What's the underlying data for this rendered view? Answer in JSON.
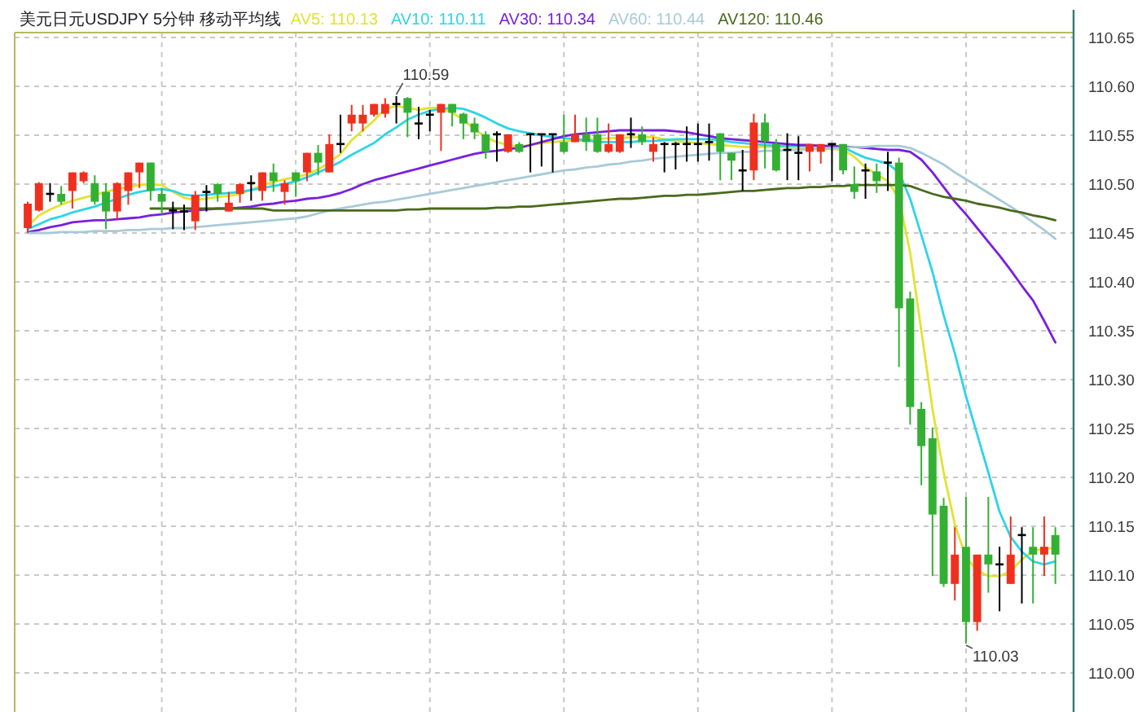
{
  "chart_data": {
    "type": "candlestick",
    "title": "美元日元USDJPY 5分钟 移动平均线",
    "categories": [
      null,
      null,
      null,
      null,
      null,
      null,
      null,
      null,
      null,
      null,
      null,
      null,
      null,
      null,
      null,
      null,
      null,
      null,
      null,
      null,
      null,
      null,
      null,
      null,
      null,
      null,
      null,
      null,
      null,
      null,
      null,
      null,
      null,
      null,
      null,
      null,
      null,
      null,
      null,
      null,
      null,
      null,
      null,
      null,
      null,
      null,
      null,
      null,
      null,
      null,
      null,
      null,
      null,
      null,
      null,
      null,
      null,
      null,
      null,
      null,
      null,
      null,
      null,
      null,
      null,
      null,
      null,
      null,
      null,
      null,
      null,
      null,
      null,
      null,
      null,
      null,
      null,
      null,
      null,
      null,
      null,
      null,
      null,
      null,
      null,
      null,
      null,
      null,
      null,
      null,
      null,
      null,
      null
    ],
    "ohlc": [
      [
        110.455,
        110.482,
        110.45,
        110.48
      ],
      [
        110.473,
        110.502,
        110.472,
        110.501
      ],
      [
        110.49,
        110.501,
        110.482,
        110.49
      ],
      [
        110.49,
        110.498,
        110.479,
        110.482
      ],
      [
        110.493,
        110.512,
        110.475,
        110.512
      ],
      [
        110.503,
        110.513,
        110.501,
        110.512
      ],
      [
        110.501,
        110.509,
        110.479,
        110.482
      ],
      [
        110.492,
        110.501,
        110.454,
        110.472
      ],
      [
        110.472,
        110.502,
        110.464,
        110.501
      ],
      [
        110.493,
        110.512,
        110.479,
        110.512
      ],
      [
        110.512,
        110.522,
        110.496,
        110.522
      ],
      [
        110.522,
        110.522,
        110.483,
        110.493
      ],
      [
        110.49,
        110.496,
        110.469,
        110.482
      ],
      [
        110.473,
        110.482,
        110.454,
        110.473
      ],
      [
        110.472,
        110.479,
        110.453,
        110.472
      ],
      [
        110.462,
        110.493,
        110.453,
        110.489
      ],
      [
        110.492,
        110.499,
        110.472,
        110.492
      ],
      [
        110.5,
        110.501,
        110.482,
        110.49
      ],
      [
        110.472,
        110.492,
        110.472,
        110.481
      ],
      [
        110.49,
        110.501,
        110.481,
        110.5
      ],
      [
        110.501,
        110.509,
        110.483,
        110.501
      ],
      [
        110.493,
        110.512,
        110.483,
        110.512
      ],
      [
        110.512,
        110.521,
        110.492,
        110.503
      ],
      [
        110.492,
        110.504,
        110.479,
        110.501
      ],
      [
        110.512,
        110.512,
        110.487,
        110.503
      ],
      [
        110.512,
        110.532,
        110.503,
        110.532
      ],
      [
        110.532,
        110.54,
        110.509,
        110.522
      ],
      [
        110.512,
        110.551,
        110.512,
        110.541
      ],
      [
        110.541,
        110.571,
        110.532,
        110.541
      ],
      [
        110.562,
        110.581,
        110.554,
        110.571
      ],
      [
        110.562,
        110.581,
        110.554,
        110.571
      ],
      [
        110.571,
        110.582,
        110.569,
        110.582
      ],
      [
        110.572,
        110.588,
        110.568,
        110.582
      ],
      [
        110.582,
        110.59,
        110.562,
        110.582
      ],
      [
        110.588,
        110.589,
        110.548,
        110.573
      ],
      [
        110.562,
        110.579,
        110.546,
        110.562
      ],
      [
        110.571,
        110.576,
        110.554,
        110.571
      ],
      [
        110.573,
        110.582,
        110.534,
        110.582
      ],
      [
        110.582,
        110.582,
        110.559,
        110.573
      ],
      [
        110.572,
        110.573,
        110.546,
        110.562
      ],
      [
        110.562,
        110.568,
        110.546,
        110.553
      ],
      [
        110.551,
        110.554,
        110.526,
        110.533
      ],
      [
        110.551,
        110.554,
        110.523,
        110.551
      ],
      [
        110.533,
        110.551,
        110.532,
        110.551
      ],
      [
        110.541,
        110.543,
        110.532,
        110.533
      ],
      [
        110.551,
        110.551,
        110.512,
        110.551
      ],
      [
        110.551,
        110.551,
        110.518,
        110.551
      ],
      [
        110.551,
        110.551,
        110.512,
        110.551
      ],
      [
        110.543,
        110.571,
        110.532,
        110.533
      ],
      [
        110.543,
        110.571,
        110.543,
        110.551
      ],
      [
        110.551,
        110.568,
        110.534,
        110.543
      ],
      [
        110.551,
        110.568,
        110.532,
        110.533
      ],
      [
        110.533,
        110.562,
        110.532,
        110.541
      ],
      [
        110.533,
        110.551,
        110.532,
        110.551
      ],
      [
        110.551,
        110.568,
        110.537,
        110.551
      ],
      [
        110.551,
        110.559,
        110.54,
        110.543
      ],
      [
        110.533,
        110.548,
        110.523,
        110.541
      ],
      [
        110.541,
        110.543,
        110.512,
        110.541
      ],
      [
        110.541,
        110.543,
        110.515,
        110.541
      ],
      [
        110.541,
        110.559,
        110.523,
        110.541
      ],
      [
        110.541,
        110.562,
        110.523,
        110.541
      ],
      [
        110.543,
        110.562,
        110.524,
        110.543
      ],
      [
        110.552,
        110.552,
        110.504,
        110.533
      ],
      [
        110.532,
        110.532,
        110.504,
        110.524
      ],
      [
        110.514,
        110.535,
        110.493,
        110.514
      ],
      [
        110.514,
        110.572,
        110.504,
        110.563
      ],
      [
        110.563,
        110.572,
        110.516,
        110.544
      ],
      [
        110.541,
        110.546,
        110.513,
        110.514
      ],
      [
        110.535,
        110.552,
        110.504,
        110.535
      ],
      [
        110.532,
        110.549,
        110.504,
        110.532
      ],
      [
        110.533,
        110.541,
        110.513,
        110.541
      ],
      [
        110.533,
        110.541,
        110.521,
        110.541
      ],
      [
        110.541,
        110.541,
        110.503,
        110.541
      ],
      [
        110.541,
        110.541,
        110.51,
        110.514
      ],
      [
        110.5,
        110.518,
        110.485,
        110.492
      ],
      [
        110.514,
        110.521,
        110.485,
        110.514
      ],
      [
        110.513,
        110.521,
        110.491,
        110.503
      ],
      [
        110.522,
        110.533,
        110.493,
        110.522
      ],
      [
        110.522,
        110.527,
        110.313,
        110.373
      ],
      [
        110.383,
        110.39,
        110.254,
        110.272
      ],
      [
        110.27,
        110.277,
        110.192,
        110.232
      ],
      [
        110.24,
        110.251,
        110.099,
        110.162
      ],
      [
        110.171,
        110.179,
        110.088,
        110.091
      ],
      [
        110.091,
        110.149,
        110.074,
        110.121
      ],
      [
        110.129,
        110.18,
        110.03,
        110.052
      ],
      [
        110.052,
        110.121,
        110.043,
        110.121
      ],
      [
        110.121,
        110.18,
        110.082,
        110.111
      ],
      [
        110.111,
        110.129,
        110.063,
        110.111
      ],
      [
        110.091,
        110.16,
        110.091,
        110.121
      ],
      [
        110.141,
        110.149,
        110.071,
        110.141
      ],
      [
        110.129,
        110.149,
        110.071,
        110.121
      ],
      [
        110.121,
        110.16,
        110.099,
        110.129
      ],
      [
        110.141,
        110.149,
        110.091,
        110.121
      ]
    ],
    "colors": [
      "#f0301e",
      "#f0301e",
      "#000000",
      "#33b033",
      "#f0301e",
      "#f0301e",
      "#33b033",
      "#33b033",
      "#f0301e",
      "#f0301e",
      "#f0301e",
      "#33b033",
      "#33b033",
      "#000000",
      "#000000",
      "#f0301e",
      "#000000",
      "#33b033",
      "#f0301e",
      "#f0301e",
      "#000000",
      "#f0301e",
      "#33b033",
      "#f0301e",
      "#33b033",
      "#f0301e",
      "#33b033",
      "#f0301e",
      "#000000",
      "#f0301e",
      "#f0301e",
      "#f0301e",
      "#f0301e",
      "#000000",
      "#33b033",
      "#000000",
      "#000000",
      "#f0301e",
      "#33b033",
      "#33b033",
      "#33b033",
      "#33b033",
      "#000000",
      "#f0301e",
      "#33b033",
      "#000000",
      "#000000",
      "#000000",
      "#33b033",
      "#f0301e",
      "#33b033",
      "#33b033",
      "#f0301e",
      "#f0301e",
      "#000000",
      "#33b033",
      "#f0301e",
      "#000000",
      "#000000",
      "#000000",
      "#000000",
      "#000000",
      "#33b033",
      "#33b033",
      "#000000",
      "#f0301e",
      "#33b033",
      "#33b033",
      "#000000",
      "#000000",
      "#f0301e",
      "#f0301e",
      "#000000",
      "#33b033",
      "#33b033",
      "#000000",
      "#33b033",
      "#000000",
      "#33b033",
      "#33b033",
      "#33b033",
      "#33b033",
      "#33b033",
      "#f0301e",
      "#33b033",
      "#f0301e",
      "#33b033",
      "#000000",
      "#f0301e",
      "#000000",
      "#33b033",
      "#f0301e",
      "#33b033"
    ],
    "series": [
      {
        "name": "AV5: 110.13",
        "type": "line",
        "color": "#e2e232",
        "values": [
          110.457,
          110.468,
          110.474,
          110.479,
          110.483,
          110.486,
          110.489,
          110.492,
          110.495,
          110.497,
          110.499,
          110.5,
          110.499,
          110.492,
          110.486,
          110.484,
          110.485,
          110.487,
          110.488,
          110.49,
          110.494,
          110.499,
          110.502,
          110.505,
          110.507,
          110.51,
          110.515,
          110.522,
          110.531,
          110.545,
          110.555,
          110.565,
          110.577,
          110.58,
          110.578,
          110.576,
          110.578,
          110.578,
          110.573,
          110.566,
          110.556,
          110.548,
          110.543,
          110.54,
          110.538,
          110.54,
          110.542,
          110.543,
          110.544,
          110.544,
          110.545,
          110.546,
          110.547,
          110.547,
          110.548,
          110.548,
          110.548,
          110.546,
          110.544,
          110.543,
          110.542,
          110.541,
          110.54,
          110.539,
          110.538,
          110.538,
          110.538,
          110.538,
          110.538,
          110.537,
          110.537,
          110.536,
          110.536,
          110.535,
          110.528,
          110.517,
          110.51,
          110.503,
          110.485,
          110.43,
          110.35,
          110.27,
          110.205,
          110.152,
          110.118,
          110.105,
          110.099,
          110.099,
          110.104,
          110.116,
          110.125,
          110.127,
          110.128
        ]
      },
      {
        "name": "AV10: 110.11",
        "type": "line",
        "color": "#2ed4e8",
        "values": [
          110.454,
          110.459,
          110.464,
          110.467,
          110.471,
          110.474,
          110.477,
          110.481,
          110.485,
          110.489,
          110.492,
          110.494,
          110.495,
          110.493,
          110.489,
          110.488,
          110.489,
          110.49,
          110.491,
          110.492,
          110.494,
          110.496,
          110.498,
          110.5,
          110.503,
          110.507,
          110.512,
          110.517,
          110.523,
          110.53,
          110.536,
          110.542,
          110.551,
          110.558,
          110.566,
          110.571,
          110.575,
          110.577,
          110.578,
          110.577,
          110.573,
          110.568,
          110.562,
          110.557,
          110.554,
          110.552,
          110.55,
          110.548,
          110.547,
          110.546,
          110.545,
          110.543,
          110.543,
          110.543,
          110.543,
          110.544,
          110.544,
          110.545,
          110.546,
          110.546,
          110.546,
          110.546,
          110.545,
          110.543,
          110.542,
          110.541,
          110.54,
          110.539,
          110.539,
          110.539,
          110.539,
          110.539,
          110.539,
          110.538,
          110.532,
          110.527,
          110.524,
          110.521,
          110.512,
          110.485,
          110.448,
          110.41,
          110.366,
          110.327,
          110.283,
          110.244,
          110.205,
          110.165,
          110.139,
          110.124,
          110.114,
          110.111,
          110.114
        ]
      },
      {
        "name": "AV30: 110.34",
        "type": "line",
        "color": "#7a1ee0",
        "values": [
          110.451,
          110.453,
          110.456,
          110.458,
          110.461,
          110.462,
          110.463,
          110.463,
          110.464,
          110.465,
          110.466,
          110.468,
          110.469,
          110.471,
          110.472,
          110.473,
          110.474,
          110.475,
          110.475,
          110.476,
          110.477,
          110.479,
          110.48,
          110.482,
          110.483,
          110.485,
          110.486,
          110.488,
          110.491,
          110.495,
          110.5,
          110.504,
          110.507,
          110.51,
          110.513,
          110.516,
          110.519,
          110.522,
          110.525,
          110.528,
          110.531,
          110.533,
          110.534,
          110.536,
          110.537,
          110.54,
          110.543,
          110.546,
          110.549,
          110.551,
          110.552,
          110.553,
          110.554,
          110.555,
          110.555,
          110.555,
          110.555,
          110.555,
          110.554,
          110.553,
          110.551,
          110.549,
          110.547,
          110.546,
          110.545,
          110.544,
          110.543,
          110.542,
          110.541,
          110.54,
          110.54,
          110.539,
          110.539,
          110.538,
          110.538,
          110.537,
          110.536,
          110.535,
          110.535,
          110.533,
          110.525,
          110.512,
          110.497,
          110.482,
          110.469,
          110.455,
          110.441,
          110.427,
          110.412,
          110.396,
          110.381,
          110.36,
          110.338
        ]
      },
      {
        "name": "AV60: 110.44",
        "type": "line",
        "color": "#a8cad8",
        "values": [
          110.45,
          110.45,
          110.45,
          110.451,
          110.451,
          110.451,
          110.452,
          110.452,
          110.452,
          110.453,
          110.453,
          110.454,
          110.454,
          110.455,
          110.455,
          110.456,
          110.457,
          110.458,
          110.459,
          110.46,
          110.461,
          110.462,
          110.463,
          110.464,
          110.465,
          110.467,
          110.47,
          110.473,
          110.475,
          110.477,
          110.479,
          110.481,
          110.482,
          110.484,
          110.486,
          110.488,
          110.49,
          110.492,
          110.494,
          110.496,
          110.498,
          110.5,
          110.502,
          110.504,
          110.506,
          110.508,
          110.51,
          110.512,
          110.514,
          110.515,
          110.517,
          110.518,
          110.52,
          110.521,
          110.523,
          110.524,
          110.526,
          110.527,
          110.528,
          110.529,
          110.53,
          110.531,
          110.532,
          110.532,
          110.533,
          110.533,
          110.534,
          110.534,
          110.535,
          110.535,
          110.536,
          110.536,
          110.537,
          110.537,
          110.538,
          110.538,
          110.539,
          110.539,
          110.539,
          110.537,
          110.532,
          110.526,
          110.52,
          110.512,
          110.505,
          110.498,
          110.491,
          110.484,
          110.477,
          110.469,
          110.461,
          110.453,
          110.444
        ]
      },
      {
        "name": "AV120: 110.46",
        "type": "line",
        "color": "#4a6a1c",
        "values": [
          null,
          null,
          null,
          null,
          null,
          null,
          null,
          null,
          null,
          null,
          null,
          110.475,
          110.475,
          110.475,
          110.475,
          110.475,
          110.475,
          110.475,
          110.475,
          110.475,
          110.475,
          110.475,
          110.473,
          110.473,
          110.473,
          110.473,
          110.473,
          110.473,
          110.473,
          110.473,
          110.473,
          110.473,
          110.473,
          110.473,
          110.474,
          110.474,
          110.475,
          110.475,
          110.475,
          110.475,
          110.475,
          110.475,
          110.476,
          110.476,
          110.477,
          110.477,
          110.478,
          110.479,
          110.48,
          110.481,
          110.482,
          110.483,
          110.484,
          110.485,
          110.485,
          110.486,
          110.487,
          110.488,
          110.488,
          110.489,
          110.489,
          110.49,
          110.491,
          110.492,
          110.493,
          110.493,
          110.494,
          110.495,
          110.496,
          110.496,
          110.497,
          110.497,
          110.498,
          110.498,
          110.499,
          110.499,
          110.499,
          110.499,
          110.499,
          110.498,
          110.494,
          110.49,
          110.487,
          110.485,
          110.483,
          110.48,
          110.478,
          110.476,
          110.473,
          110.471,
          110.468,
          110.466,
          110.463
        ]
      }
    ],
    "ylim": [
      109.96,
      110.655
    ],
    "yticks": [
      {
        "value": 110,
        "label": "110.00"
      },
      110.05,
      {
        "value": 110.1,
        "label": "110.10"
      },
      110.15,
      {
        "value": 110.2,
        "label": "110.20"
      },
      110.25,
      {
        "value": 110.3,
        "label": "110.30"
      },
      110.35,
      {
        "value": 110.4,
        "label": "110.40"
      },
      110.45,
      {
        "value": 110.5,
        "label": "110.50"
      },
      110.55,
      {
        "value": 110.6,
        "label": "110.60"
      },
      110.65
    ],
    "annotations": [
      "110.59",
      "110.03"
    ],
    "grid": true,
    "legend": "top",
    "tick_labels": "y"
  }
}
